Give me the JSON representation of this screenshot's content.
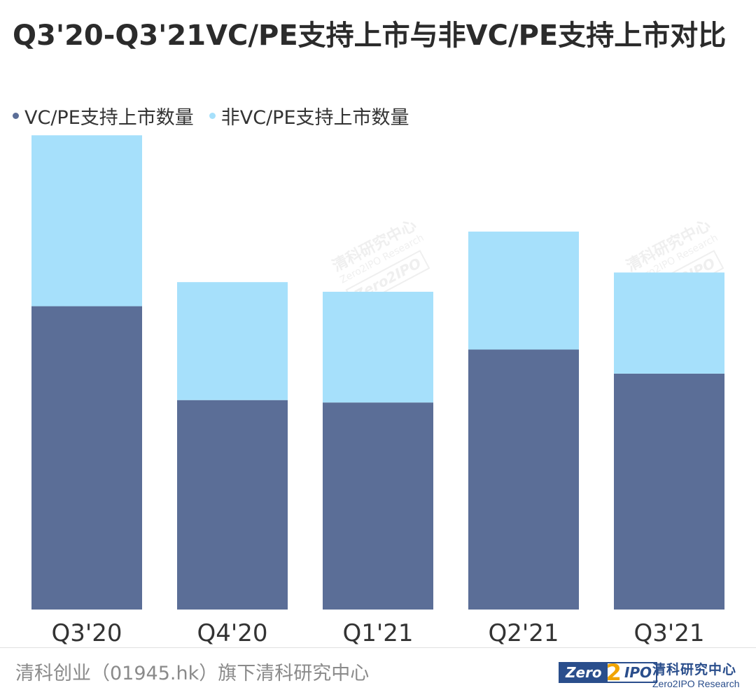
{
  "title": "Q3'20-Q3'21VC/PE支持上市与非VC/PE支持上市对比",
  "footer": {
    "source": "清科创业（01945.hk）旗下清科研究中心",
    "logo_left": "Zero",
    "logo_two": "2",
    "logo_right": "IPO",
    "logo_cn": "清科研究中心",
    "logo_en": "Zero2IPO Research"
  },
  "watermark": {
    "cn": "清科研究中心",
    "en": "Zero2IPO Research",
    "logo": "Zero2IPO"
  },
  "chart_data": {
    "type": "bar",
    "stacked": true,
    "categories": [
      "Q3'20",
      "Q4'20",
      "Q1'21",
      "Q2'21",
      "Q3'21"
    ],
    "series": [
      {
        "name": "VC/PE支持上市数量",
        "color": "#5b6e97",
        "values": [
          126,
          87,
          86,
          108,
          98
        ]
      },
      {
        "name": "非VC/PE支持上市数量",
        "color": "#a6e0fb",
        "values": [
          71,
          49,
          46,
          49,
          42
        ]
      }
    ],
    "ylim": [
      0,
      200
    ],
    "grid": false,
    "legend_position": "top-left",
    "xlabel": "",
    "ylabel": ""
  }
}
